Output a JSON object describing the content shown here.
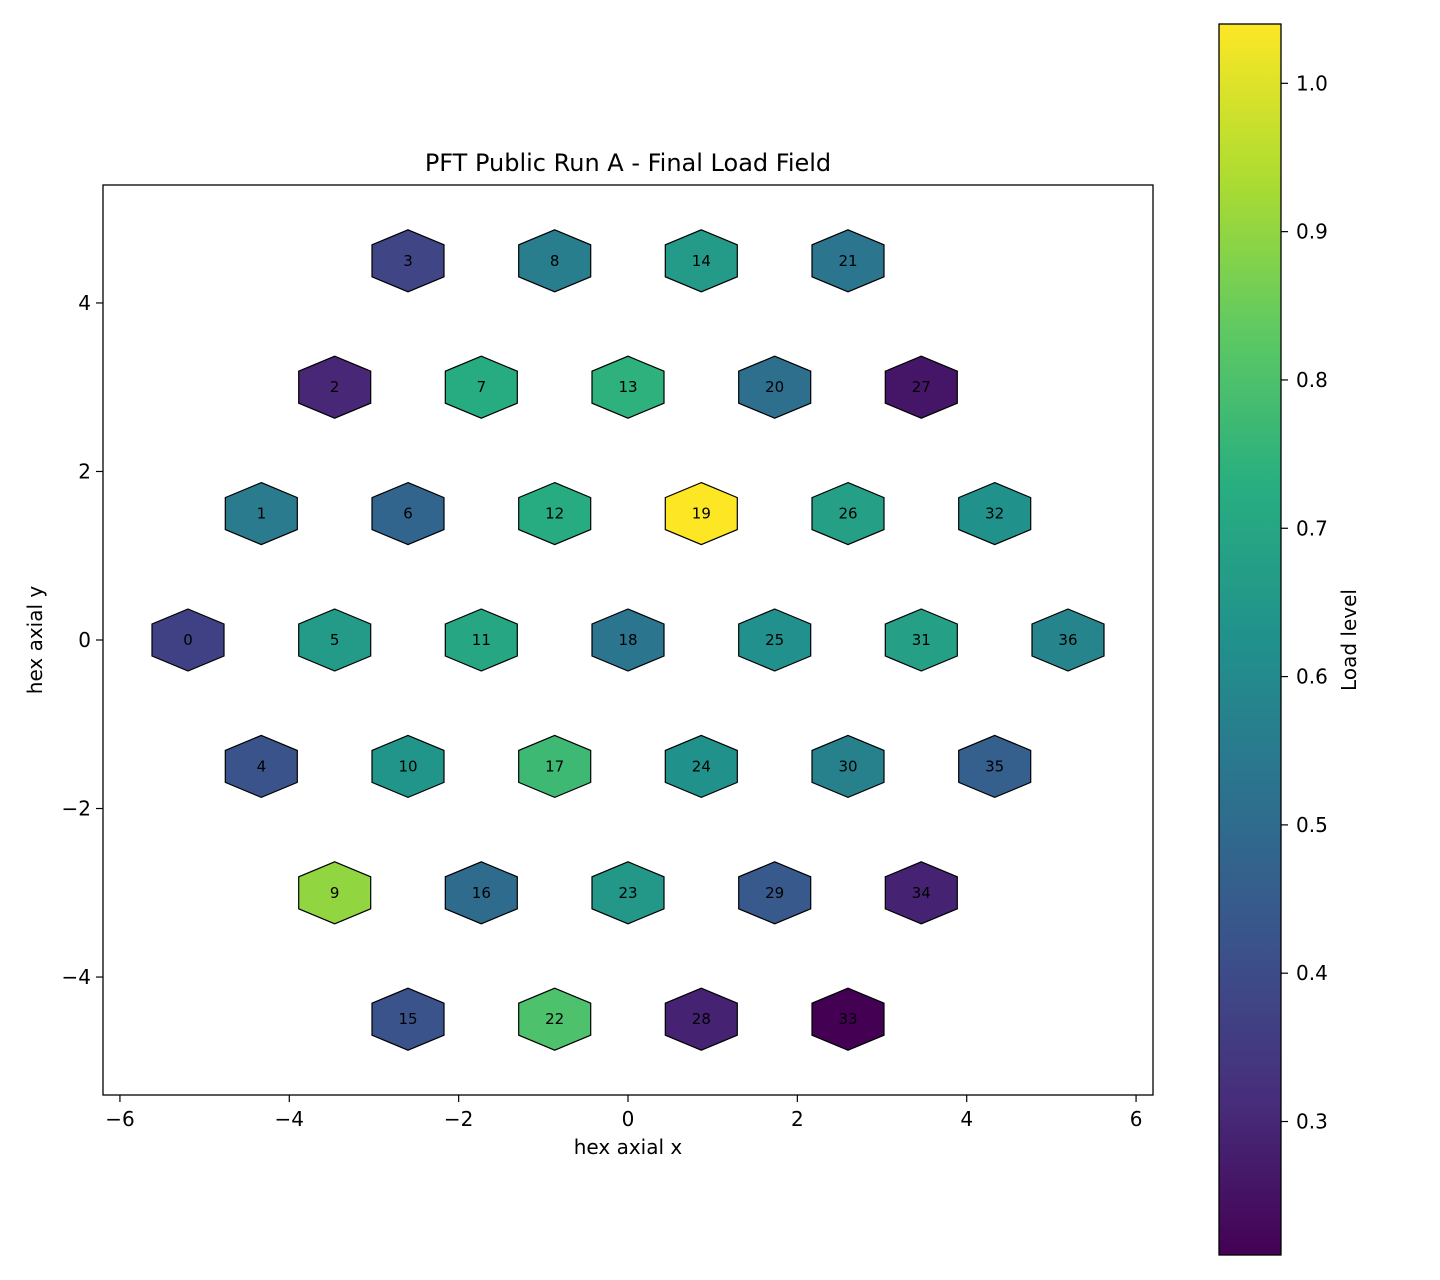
{
  "chart_data": {
    "type": "hexbin",
    "title": "PFT Public Run A - Final Load Field",
    "xlabel": "hex axial x",
    "ylabel": "hex axial y",
    "xlim": [
      -6.2,
      6.2
    ],
    "ylim": [
      -5.4,
      5.4
    ],
    "xticks": [
      -6,
      -4,
      -2,
      0,
      2,
      4,
      6
    ],
    "xtick_labels": [
      "−6",
      "−4",
      "−2",
      "0",
      "2",
      "4",
      "6"
    ],
    "yticks": [
      -4,
      -2,
      0,
      2,
      4
    ],
    "ytick_labels": [
      "−4",
      "−2",
      "0",
      "2",
      "4"
    ],
    "colorbar": {
      "label": "Load level",
      "colormap": "viridis",
      "range": [
        0.21,
        1.04
      ],
      "ticks": [
        0.3,
        0.4,
        0.5,
        0.6,
        0.7,
        0.8,
        0.9,
        1.0
      ],
      "tick_labels": [
        "0.3",
        "0.4",
        "0.5",
        "0.6",
        "0.7",
        "0.8",
        "0.9",
        "1.0"
      ]
    },
    "cells": [
      {
        "id": "0",
        "x": -5.196,
        "y": 0.0,
        "value": 0.37
      },
      {
        "id": "1",
        "x": -4.33,
        "y": 1.5,
        "value": 0.55
      },
      {
        "id": "2",
        "x": -3.464,
        "y": 3.0,
        "value": 0.3
      },
      {
        "id": "3",
        "x": -2.598,
        "y": 4.5,
        "value": 0.38
      },
      {
        "id": "4",
        "x": -4.33,
        "y": -1.5,
        "value": 0.42
      },
      {
        "id": "5",
        "x": -3.464,
        "y": 0.0,
        "value": 0.66
      },
      {
        "id": "6",
        "x": -2.598,
        "y": 1.5,
        "value": 0.48
      },
      {
        "id": "7",
        "x": -1.732,
        "y": 3.0,
        "value": 0.72
      },
      {
        "id": "8",
        "x": -0.866,
        "y": 4.5,
        "value": 0.56
      },
      {
        "id": "9",
        "x": -3.464,
        "y": -3.0,
        "value": 0.9
      },
      {
        "id": "10",
        "x": -2.598,
        "y": -1.5,
        "value": 0.64
      },
      {
        "id": "11",
        "x": -1.732,
        "y": 0.0,
        "value": 0.7
      },
      {
        "id": "12",
        "x": -0.866,
        "y": 1.5,
        "value": 0.72
      },
      {
        "id": "13",
        "x": 0.0,
        "y": 3.0,
        "value": 0.74
      },
      {
        "id": "14",
        "x": 0.866,
        "y": 4.5,
        "value": 0.66
      },
      {
        "id": "15",
        "x": -2.598,
        "y": -4.5,
        "value": 0.42
      },
      {
        "id": "16",
        "x": -1.732,
        "y": -3.0,
        "value": 0.5
      },
      {
        "id": "17",
        "x": -0.866,
        "y": -1.5,
        "value": 0.77
      },
      {
        "id": "18",
        "x": 0.0,
        "y": 0.0,
        "value": 0.53
      },
      {
        "id": "19",
        "x": 0.866,
        "y": 1.5,
        "value": 1.04
      },
      {
        "id": "20",
        "x": 1.732,
        "y": 3.0,
        "value": 0.51
      },
      {
        "id": "21",
        "x": 2.598,
        "y": 4.5,
        "value": 0.53
      },
      {
        "id": "22",
        "x": -0.866,
        "y": -4.5,
        "value": 0.8
      },
      {
        "id": "23",
        "x": 0.0,
        "y": -3.0,
        "value": 0.65
      },
      {
        "id": "24",
        "x": 0.866,
        "y": -1.5,
        "value": 0.63
      },
      {
        "id": "25",
        "x": 1.732,
        "y": 0.0,
        "value": 0.62
      },
      {
        "id": "26",
        "x": 2.598,
        "y": 1.5,
        "value": 0.68
      },
      {
        "id": "27",
        "x": 3.464,
        "y": 3.0,
        "value": 0.26
      },
      {
        "id": "28",
        "x": 0.866,
        "y": -4.5,
        "value": 0.29
      },
      {
        "id": "29",
        "x": 1.732,
        "y": -3.0,
        "value": 0.44
      },
      {
        "id": "30",
        "x": 2.598,
        "y": -1.5,
        "value": 0.57
      },
      {
        "id": "31",
        "x": 3.464,
        "y": 0.0,
        "value": 0.68
      },
      {
        "id": "32",
        "x": 4.33,
        "y": 1.5,
        "value": 0.63
      },
      {
        "id": "33",
        "x": 2.598,
        "y": -4.5,
        "value": 0.21
      },
      {
        "id": "34",
        "x": 3.464,
        "y": -3.0,
        "value": 0.29
      },
      {
        "id": "35",
        "x": 4.33,
        "y": -1.5,
        "value": 0.46
      },
      {
        "id": "36",
        "x": 5.196,
        "y": 0.0,
        "value": 0.58
      }
    ]
  }
}
